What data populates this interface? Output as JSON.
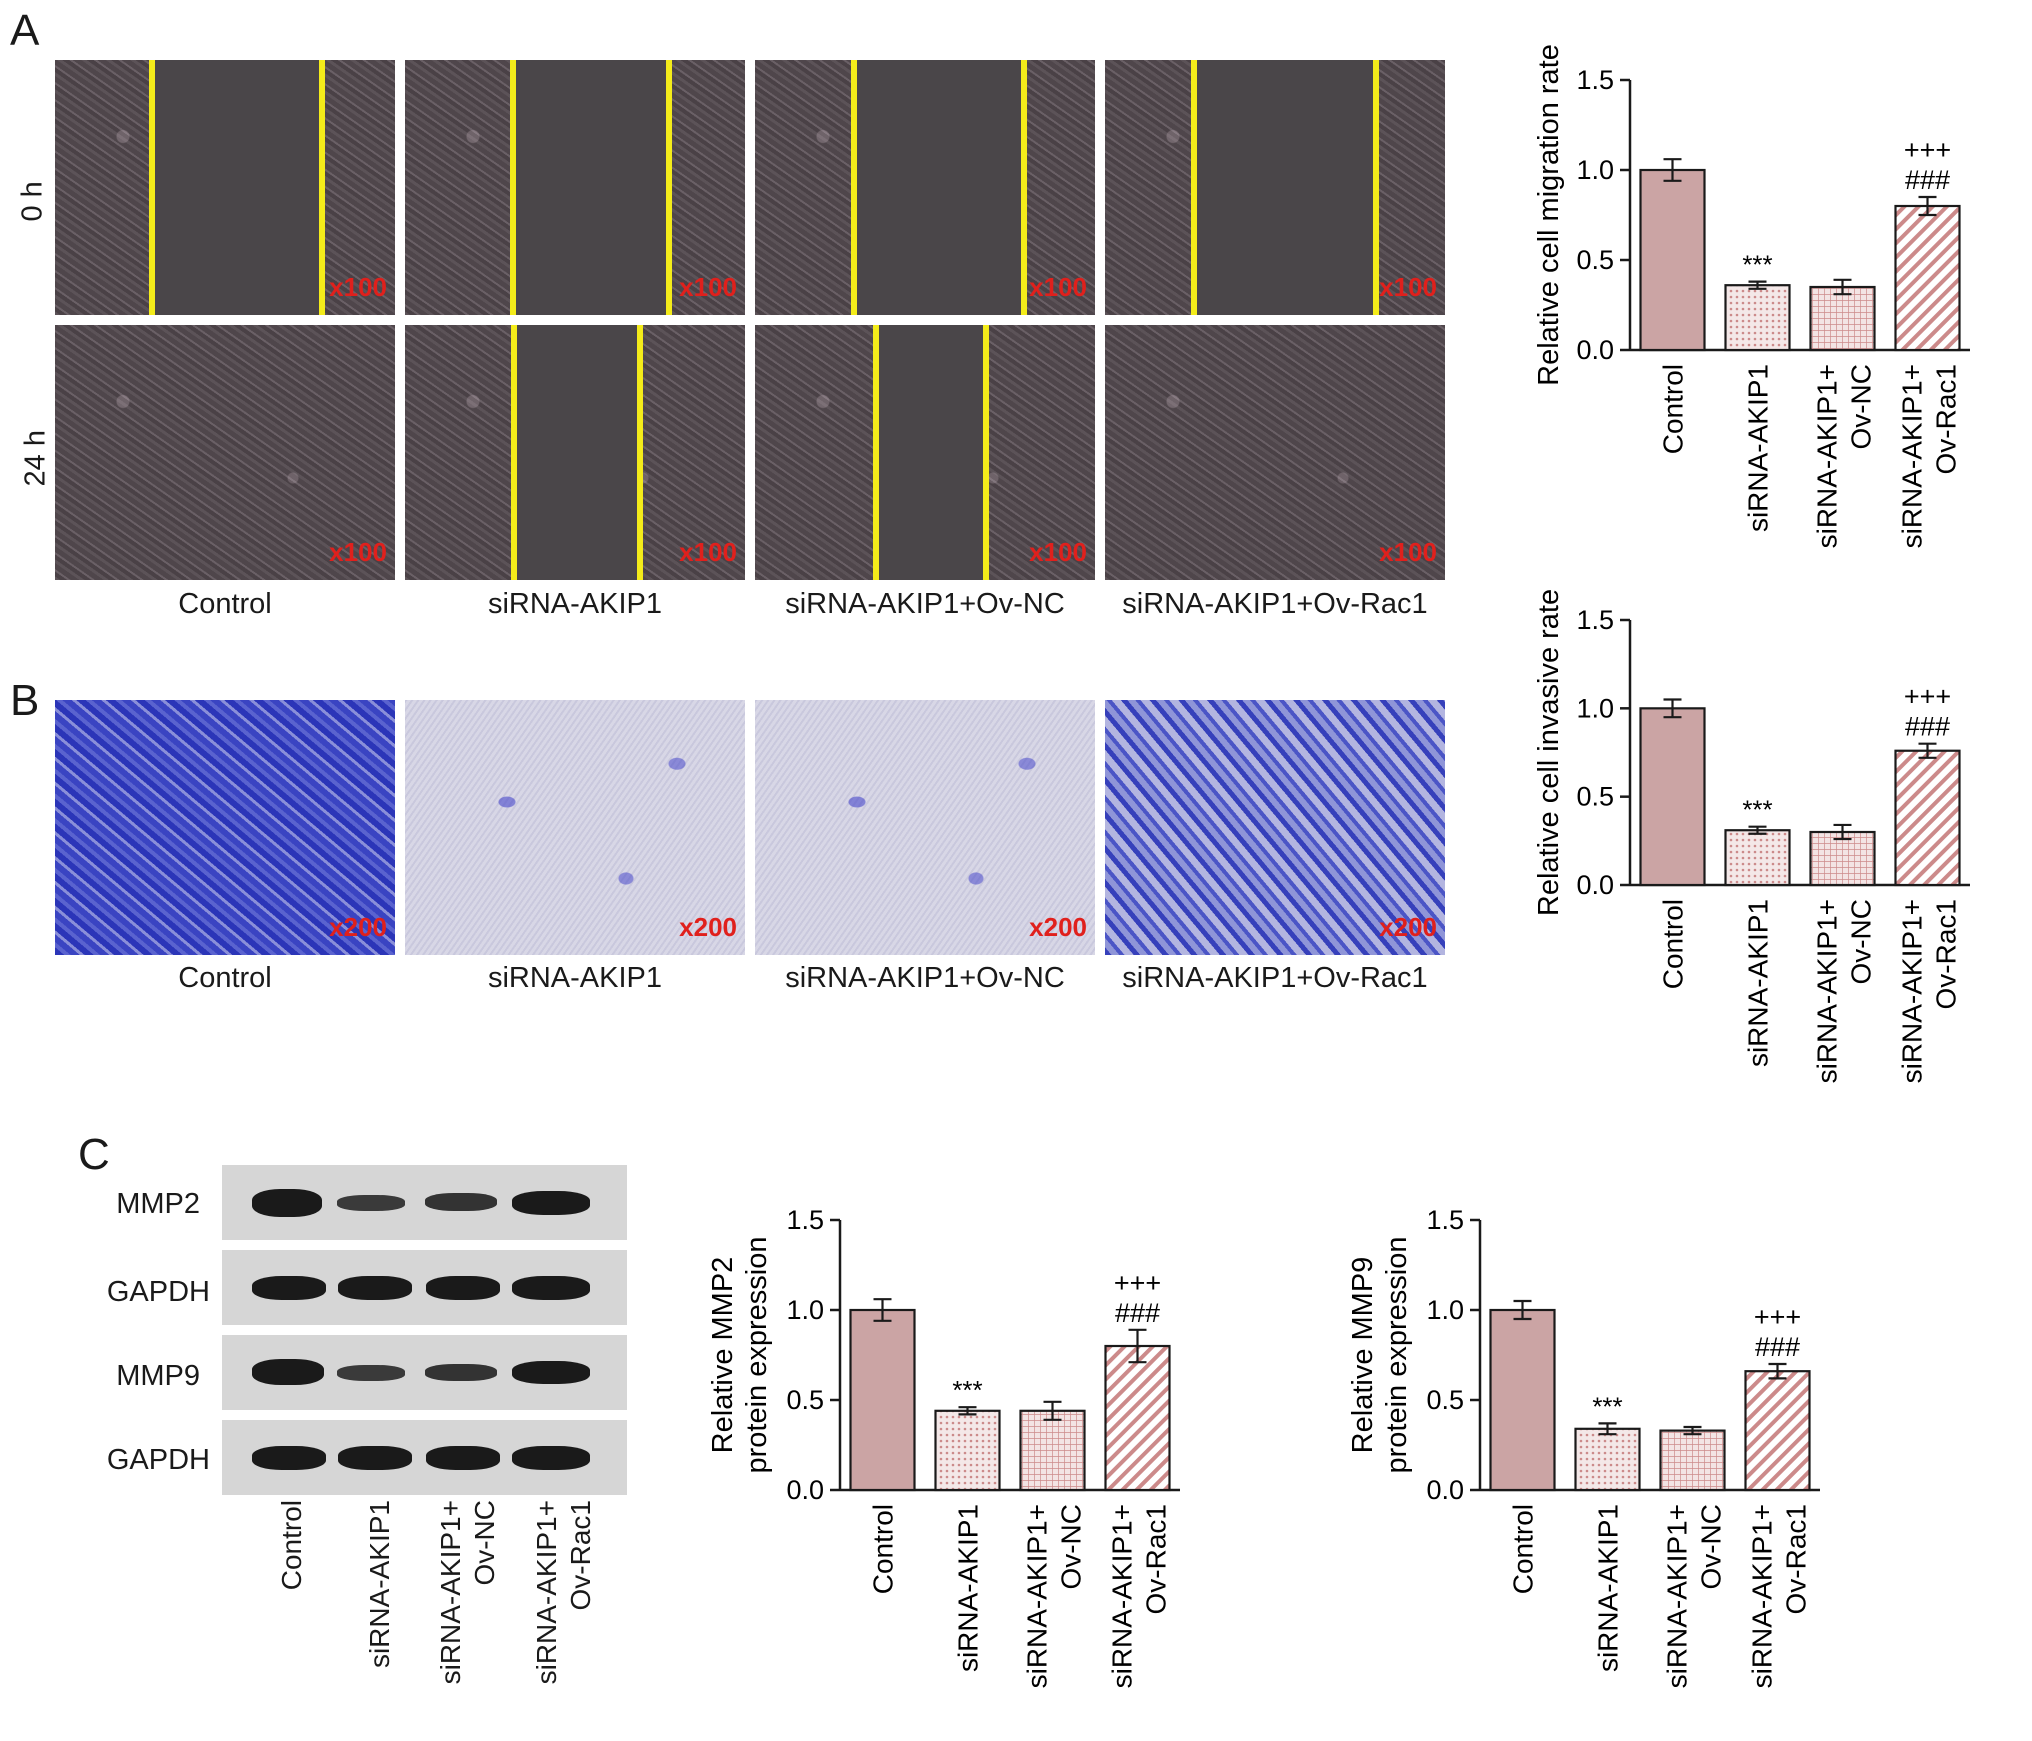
{
  "panels": {
    "A": {
      "letter": "A",
      "row_labels": [
        "0 h",
        "24 h"
      ],
      "magnification": "x100",
      "captions": [
        "Control",
        "siRNA-AKIP1",
        "siRNA-AKIP1+Ov-NC",
        "siRNA-AKIP1+Ov-Rac1"
      ]
    },
    "B": {
      "letter": "B",
      "magnification": "x200",
      "captions": [
        "Control",
        "siRNA-AKIP1",
        "siRNA-AKIP1+Ov-NC",
        "siRNA-AKIP1+Ov-Rac1"
      ]
    },
    "C": {
      "letter": "C",
      "blot_labels": [
        "MMP2",
        "GAPDH",
        "MMP9",
        "GAPDH"
      ],
      "lane_labels": [
        [
          "Control"
        ],
        [
          "siRNA-AKIP1"
        ],
        [
          "siRNA-AKIP1+",
          "Ov-NC"
        ],
        [
          "siRNA-AKIP1+",
          "Ov-Rac1"
        ]
      ]
    }
  },
  "colors": {
    "bar_fill": "#cba4a4",
    "hatch_line": "#cc8a8a",
    "scratch_line": "#f4ec1a",
    "magnification_text": "#e0201c",
    "stain": "#3a44c2"
  },
  "chart_data": [
    {
      "type": "bar",
      "ylabel": "Relative cell migration rate",
      "ylim": [
        0,
        1.5
      ],
      "yticks": [
        "0.0",
        "0.5",
        "1.0",
        "1.5"
      ],
      "categories": [
        [
          "Control"
        ],
        [
          "siRNA-AKIP1"
        ],
        [
          "siRNA-AKIP1+",
          "Ov-NC"
        ],
        [
          "siRNA-AKIP1+",
          "Ov-Rac1"
        ]
      ],
      "values": [
        1.0,
        0.36,
        0.35,
        0.8
      ],
      "errors": [
        0.06,
        0.02,
        0.04,
        0.05
      ],
      "patterns": [
        "solid",
        "dots",
        "grid",
        "diagonal"
      ],
      "annotations": [
        [],
        [
          "***"
        ],
        [],
        [
          "+++",
          "###"
        ]
      ]
    },
    {
      "type": "bar",
      "ylabel": "Relative cell invasive rate",
      "ylim": [
        0,
        1.5
      ],
      "yticks": [
        "0.0",
        "0.5",
        "1.0",
        "1.5"
      ],
      "categories": [
        [
          "Control"
        ],
        [
          "siRNA-AKIP1"
        ],
        [
          "siRNA-AKIP1+",
          "Ov-NC"
        ],
        [
          "siRNA-AKIP1+",
          "Ov-Rac1"
        ]
      ],
      "values": [
        1.0,
        0.31,
        0.3,
        0.76
      ],
      "errors": [
        0.05,
        0.02,
        0.04,
        0.04
      ],
      "patterns": [
        "solid",
        "dots",
        "grid",
        "diagonal"
      ],
      "annotations": [
        [],
        [
          "***"
        ],
        [],
        [
          "+++",
          "###"
        ]
      ]
    },
    {
      "type": "bar",
      "ylabel": [
        "Relative MMP2",
        "protein expression"
      ],
      "ylim": [
        0,
        1.5
      ],
      "yticks": [
        "0.0",
        "0.5",
        "1.0",
        "1.5"
      ],
      "categories": [
        [
          "Control"
        ],
        [
          "siRNA-AKIP1"
        ],
        [
          "siRNA-AKIP1+",
          "Ov-NC"
        ],
        [
          "siRNA-AKIP1+",
          "Ov-Rac1"
        ]
      ],
      "values": [
        1.0,
        0.44,
        0.44,
        0.8
      ],
      "errors": [
        0.06,
        0.02,
        0.05,
        0.09
      ],
      "patterns": [
        "solid",
        "dots",
        "grid",
        "diagonal"
      ],
      "annotations": [
        [],
        [
          "***"
        ],
        [],
        [
          "+++",
          "###"
        ]
      ]
    },
    {
      "type": "bar",
      "ylabel": [
        "Relative MMP9",
        "protein expression"
      ],
      "ylim": [
        0,
        1.5
      ],
      "yticks": [
        "0.0",
        "0.5",
        "1.0",
        "1.5"
      ],
      "categories": [
        [
          "Control"
        ],
        [
          "siRNA-AKIP1"
        ],
        [
          "siRNA-AKIP1+",
          "Ov-NC"
        ],
        [
          "siRNA-AKIP1+",
          "Ov-Rac1"
        ]
      ],
      "values": [
        1.0,
        0.34,
        0.33,
        0.66
      ],
      "errors": [
        0.05,
        0.03,
        0.02,
        0.04
      ],
      "patterns": [
        "solid",
        "dots",
        "grid",
        "diagonal"
      ],
      "annotations": [
        [],
        [
          "***"
        ],
        [],
        [
          "+++",
          "###"
        ]
      ]
    }
  ]
}
